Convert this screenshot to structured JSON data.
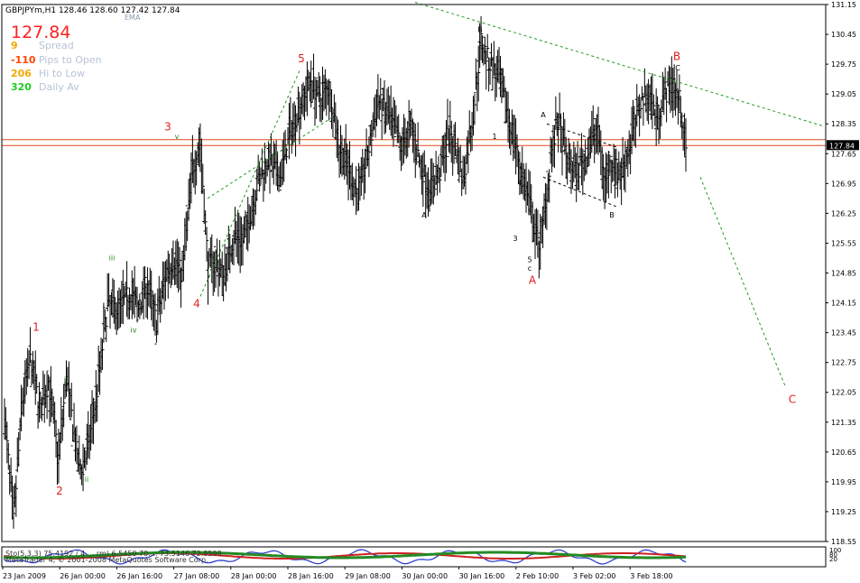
{
  "header": {
    "symbol_line": "GBPJPYm,H1  128.46 128.60 127.42 127.84",
    "ema_label": "EMA",
    "big_price": "127.84"
  },
  "info_panel": [
    {
      "value": "9",
      "label": "Spread",
      "color": "#f2a900"
    },
    {
      "value": "-110",
      "label": "Pips to Open",
      "color": "#ff4500"
    },
    {
      "value": "206",
      "label": "Hi to Low",
      "color": "#f2a900"
    },
    {
      "value": "320",
      "label": "Daily Av",
      "color": "#22cc22"
    }
  ],
  "indicator_text": "Sto(5,3,3) 75.4192 / 4 ... rm) 6.5450 70.... 73.5146 72.8598",
  "copyright_text": "MetaTrader 4, © 2001-2008 MetaQuotes Software Corp.",
  "indicator_axis_labels": [
    "100",
    "80",
    "20"
  ],
  "current_price_label": "127.84",
  "chart_data": {
    "type": "candlestick",
    "instrument": "GBPJPYm",
    "timeframe": "H1",
    "ylim": [
      118.55,
      131.15
    ],
    "y_ticks": [
      131.15,
      130.45,
      129.75,
      129.05,
      128.35,
      127.65,
      126.95,
      126.25,
      125.55,
      124.85,
      124.15,
      123.45,
      122.75,
      122.05,
      121.35,
      120.65,
      119.95,
      119.25,
      118.55
    ],
    "x_ticks": [
      "23 Jan 2009",
      "26 Jan 00:00",
      "26 Jan 16:00",
      "27 Jan 08:00",
      "28 Jan 00:00",
      "28 Jan 16:00",
      "29 Jan 08:00",
      "30 Jan 00:00",
      "30 Jan 16:00",
      "2 Feb 10:00",
      "3 Feb 02:00",
      "3 Feb 18:00"
    ],
    "current_price": 127.84,
    "horizontal_lines": [
      127.84,
      127.98
    ],
    "hlc_anchors": [
      [
        0,
        121.5
      ],
      [
        7,
        119.0
      ],
      [
        14,
        121.9
      ],
      [
        20,
        122.8
      ],
      [
        28,
        121.6
      ],
      [
        34,
        122.3
      ],
      [
        42,
        120.5
      ],
      [
        48,
        122.4
      ],
      [
        58,
        120.2
      ],
      [
        64,
        120.6
      ],
      [
        72,
        122.1
      ],
      [
        80,
        124.1
      ],
      [
        88,
        124.0
      ],
      [
        98,
        124.4
      ],
      [
        104,
        124.0
      ],
      [
        110,
        124.6
      ],
      [
        118,
        123.7
      ],
      [
        126,
        124.9
      ],
      [
        131,
        125.2
      ],
      [
        138,
        124.8
      ],
      [
        146,
        127.3
      ],
      [
        152,
        127.9
      ],
      [
        158,
        125.0
      ],
      [
        164,
        125.1
      ],
      [
        170,
        124.8
      ],
      [
        178,
        125.7
      ],
      [
        186,
        125.6
      ],
      [
        196,
        126.9
      ],
      [
        204,
        127.5
      ],
      [
        214,
        127.1
      ],
      [
        222,
        128.2
      ],
      [
        230,
        128.8
      ],
      [
        238,
        129.4
      ],
      [
        244,
        128.9
      ],
      [
        252,
        129.2
      ],
      [
        260,
        127.8
      ],
      [
        266,
        127.4
      ],
      [
        274,
        126.7
      ],
      [
        282,
        127.6
      ],
      [
        290,
        128.9
      ],
      [
        300,
        128.4
      ],
      [
        308,
        127.8
      ],
      [
        316,
        128.3
      ],
      [
        322,
        127.5
      ],
      [
        330,
        126.8
      ],
      [
        338,
        127.2
      ],
      [
        344,
        128.1
      ],
      [
        350,
        127.9
      ],
      [
        356,
        127.0
      ],
      [
        364,
        128.6
      ],
      [
        370,
        130.3
      ],
      [
        376,
        129.8
      ],
      [
        382,
        129.5
      ],
      [
        388,
        128.9
      ],
      [
        394,
        128.2
      ],
      [
        400,
        127.4
      ],
      [
        404,
        126.9
      ],
      [
        408,
        126.4
      ],
      [
        414,
        125.5
      ],
      [
        418,
        125.9
      ],
      [
        424,
        127.6
      ],
      [
        430,
        128.4
      ],
      [
        436,
        127.5
      ],
      [
        444,
        127.2
      ],
      [
        452,
        127.6
      ],
      [
        460,
        128.3
      ],
      [
        466,
        127.0
      ],
      [
        472,
        127.5
      ],
      [
        478,
        127.1
      ],
      [
        486,
        127.9
      ],
      [
        494,
        128.9
      ],
      [
        500,
        129.1
      ],
      [
        506,
        128.5
      ],
      [
        512,
        129.0
      ],
      [
        518,
        129.3
      ],
      [
        524,
        128.9
      ],
      [
        529,
        127.8
      ]
    ],
    "wave_labels": [
      {
        "text": "1",
        "color": "#e02020",
        "price": 123.5,
        "at": 40
      },
      {
        "text": "2",
        "color": "#e02020",
        "price": 119.65,
        "at": 66
      },
      {
        "text": "3",
        "color": "#e02020",
        "price": 128.2,
        "at": 186
      },
      {
        "text": "4",
        "color": "#e02020",
        "price": 124.05,
        "at": 218
      },
      {
        "text": "5",
        "color": "#e02020",
        "price": 129.8,
        "at": 334
      },
      {
        "text": "A",
        "color": "#e02020",
        "price": 124.6,
        "at": 590
      },
      {
        "text": "B",
        "color": "#e02020",
        "price": 129.85,
        "at": 750
      },
      {
        "text": "C",
        "color": "#e02020",
        "price": 121.8,
        "at": 878
      },
      {
        "text": "i",
        "color": "#228b22",
        "price": 122.3,
        "at": 72
      },
      {
        "text": "ii",
        "color": "#228b22",
        "price": 119.95,
        "at": 96
      },
      {
        "text": "iii",
        "color": "#228b22",
        "price": 125.15,
        "at": 124
      },
      {
        "text": "iv",
        "color": "#228b22",
        "price": 123.45,
        "at": 148
      },
      {
        "text": "v",
        "color": "#228b22",
        "price": 128.0,
        "at": 196
      },
      {
        "text": "A",
        "color": "#000000",
        "price": 126.15,
        "at": 470
      },
      {
        "text": "B",
        "color": "#000000",
        "price": 130.5,
        "at": 532
      },
      {
        "text": "1",
        "color": "#000000",
        "price": 128.0,
        "at": 548
      },
      {
        "text": "2",
        "color": "#000000",
        "price": 129.5,
        "at": 556
      },
      {
        "text": "3",
        "color": "#000000",
        "price": 125.6,
        "at": 571
      },
      {
        "text": "4",
        "color": "#000000",
        "price": 126.9,
        "at": 576
      },
      {
        "text": "5",
        "color": "#000000",
        "price": 125.1,
        "at": 587
      },
      {
        "text": "c",
        "color": "#000000",
        "price": 124.9,
        "at": 587
      },
      {
        "text": "A",
        "color": "#000000",
        "price": 128.5,
        "at": 602
      },
      {
        "text": "B",
        "color": "#000000",
        "price": 126.15,
        "at": 678
      },
      {
        "text": "C",
        "color": "#000000",
        "price": 129.6,
        "at": 751
      }
    ],
    "trend_lines": [
      {
        "style": "green-dashed",
        "from": [
          222,
          124.3
        ],
        "to": [
          332,
          129.6
        ]
      },
      {
        "style": "green-dashed",
        "from": [
          230,
          126.6
        ],
        "to": [
          368,
          128.5
        ]
      },
      {
        "style": "green-dashed",
        "from": [
          460,
          131.2
        ],
        "to": [
          912,
          128.3
        ]
      },
      {
        "style": "green-dashed",
        "from": [
          776,
          127.1
        ],
        "to": [
          870,
          122.2
        ]
      },
      {
        "style": "black-dashed",
        "from": [
          606,
          128.35
        ],
        "to": [
          684,
          127.8
        ]
      },
      {
        "style": "black-dashed",
        "from": [
          602,
          127.1
        ],
        "to": [
          684,
          126.4
        ]
      }
    ]
  }
}
